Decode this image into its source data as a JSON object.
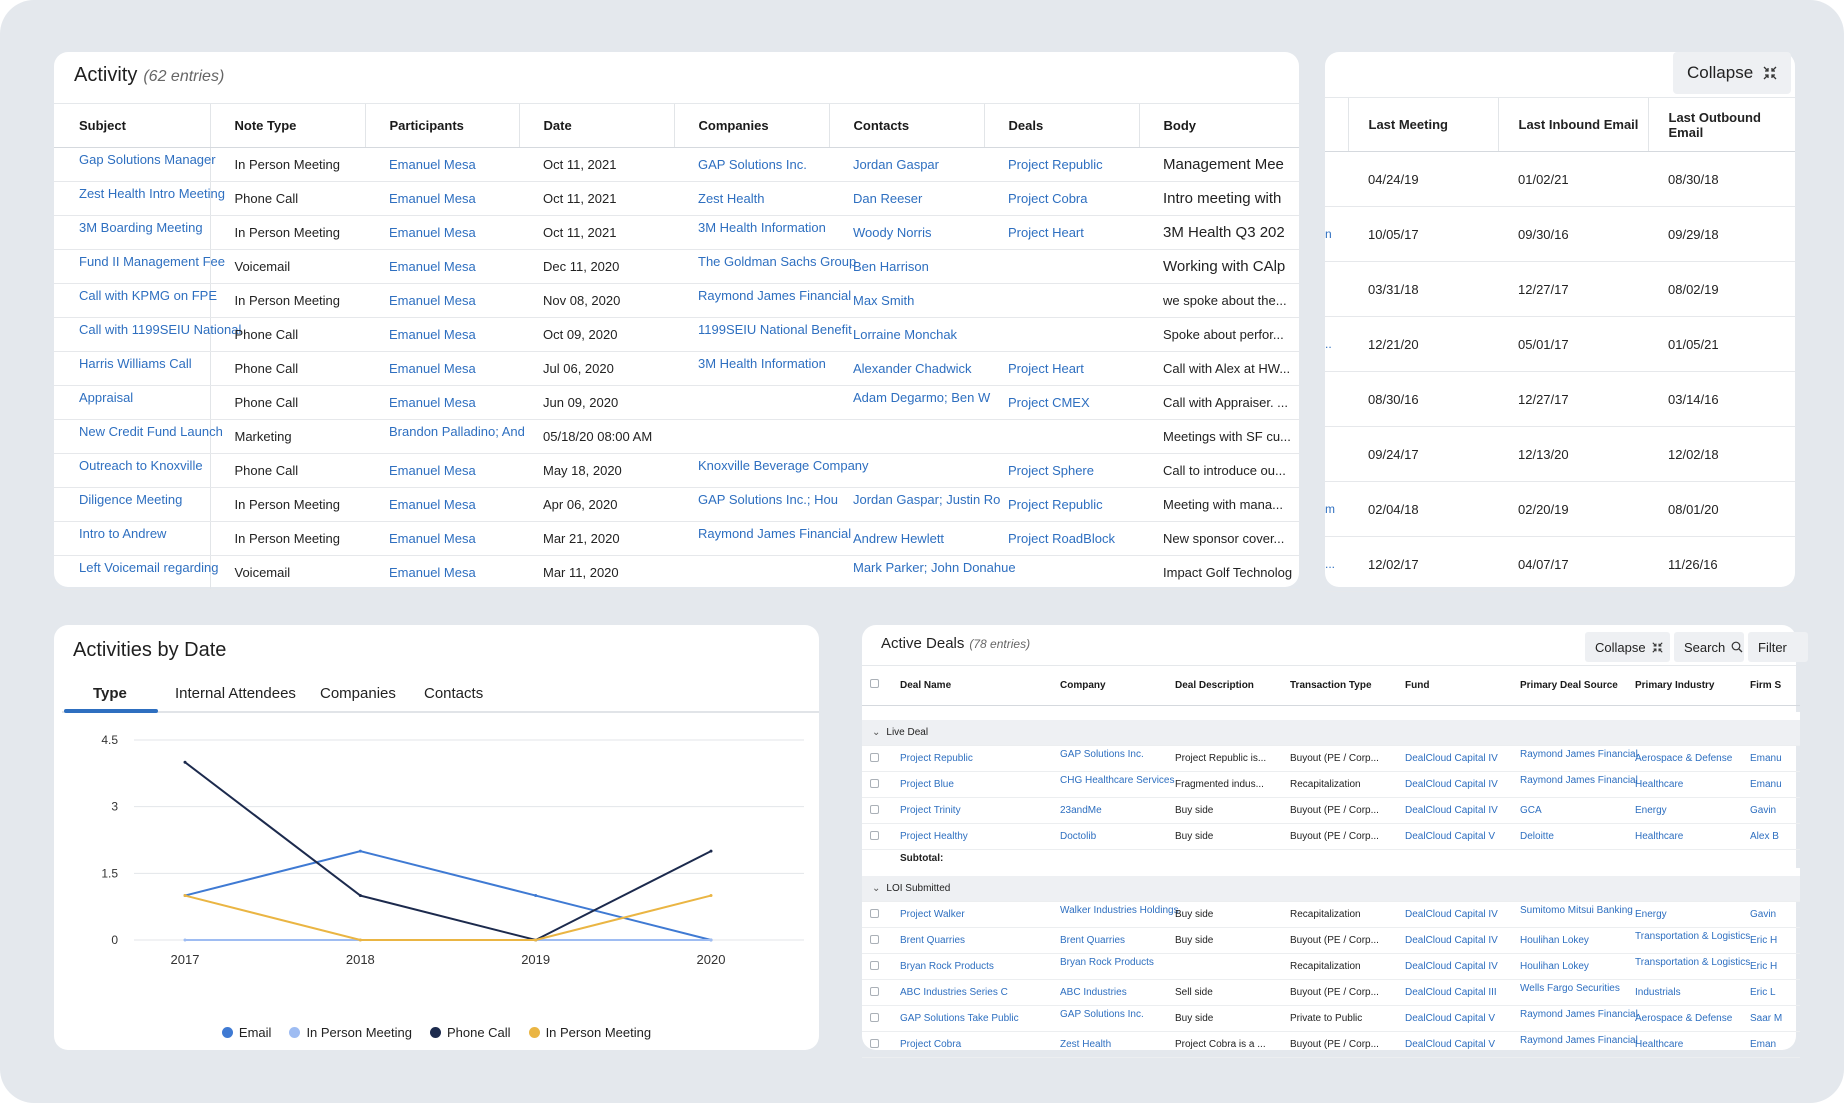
{
  "activity": {
    "title": "Activity",
    "count": "(62 entries)",
    "columns": [
      "Subject",
      "Note Type",
      "Participants",
      "Date",
      "Companies",
      "Contacts",
      "Deals",
      "Body"
    ],
    "rows": [
      [
        "Gap Solutions Manager",
        "In Person Meeting",
        "Emanuel Mesa",
        "Oct 11, 2021",
        "GAP Solutions Inc.",
        "Jordan Gaspar",
        "Project Republic",
        "Management Mee"
      ],
      [
        "Zest Health Intro Meeting",
        "Phone Call",
        "Emanuel Mesa",
        "Oct 11, 2021",
        "Zest Health",
        "Dan Reeser",
        "Project Cobra",
        "Intro meeting with"
      ],
      [
        "3M Boarding Meeting",
        "In Person Meeting",
        "Emanuel Mesa",
        "Oct 11, 2021",
        "3M Health Information",
        "Woody Norris",
        "Project Heart",
        "3M Health Q3 202"
      ],
      [
        "Fund II Management Fee",
        "Voicemail",
        "Emanuel Mesa",
        "Dec 11, 2020",
        "The Goldman Sachs Group",
        "Ben Harrison",
        "",
        "Working with CAlp"
      ],
      [
        "Call with KPMG on FPE",
        "In Person Meeting",
        "Emanuel Mesa",
        "Nov 08, 2020",
        "Raymond James Financial",
        "Max Smith",
        "",
        "we spoke about the..."
      ],
      [
        "Call with 1199SEIU National",
        "Phone Call",
        "Emanuel Mesa",
        "Oct 09, 2020",
        "1199SEIU National Benefit",
        "Lorraine Monchak",
        "",
        "Spoke about perfor..."
      ],
      [
        "Harris Williams Call",
        "Phone Call",
        "Emanuel Mesa",
        "Jul 06, 2020",
        "3M Health Information",
        "Alexander Chadwick",
        "Project Heart",
        "Call with Alex at HW..."
      ],
      [
        "Appraisal",
        "Phone Call",
        "Emanuel Mesa",
        "Jun 09, 2020",
        "",
        "Adam Degarmo; Ben W",
        "Project CMEX",
        "Call with Appraiser. ..."
      ],
      [
        "New Credit Fund Launch",
        "Marketing",
        "Brandon Palladino; And",
        "05/18/20 08:00 AM",
        "",
        "",
        "",
        "Meetings with SF cu..."
      ],
      [
        "Outreach to Knoxville",
        "Phone Call",
        "Emanuel Mesa",
        "May 18, 2020",
        "Knoxville Beverage Company",
        "",
        "Project Sphere",
        "Call to introduce ou..."
      ],
      [
        "Diligence Meeting",
        "In Person Meeting",
        "Emanuel Mesa",
        "Apr 06, 2020",
        "GAP Solutions Inc.; Hou",
        "Jordan Gaspar; Justin Ro",
        "Project Republic",
        "Meeting with mana..."
      ],
      [
        "Intro to Andrew",
        "In Person Meeting",
        "Emanuel Mesa",
        "Mar 21, 2020",
        "Raymond James Financial",
        "Andrew Hewlett",
        "Project RoadBlock",
        "New sponsor cover..."
      ],
      [
        "Left Voicemail regarding",
        "Voicemail",
        "Emanuel Mesa",
        "Mar 11, 2020",
        "",
        "Mark Parker; John Donahue",
        "",
        "Impact Golf Technolog"
      ]
    ]
  },
  "contacts": {
    "collapse_label": "Collapse",
    "columns": [
      "",
      "Last Meeting",
      "Last Inbound Email",
      "Last Outbound Email"
    ],
    "rows": [
      [
        "",
        "04/24/19",
        "01/02/21",
        "08/30/18"
      ],
      [
        "n",
        "10/05/17",
        "09/30/16",
        "09/29/18"
      ],
      [
        "",
        "03/31/18",
        "12/27/17",
        "08/02/19"
      ],
      [
        "..",
        "12/21/20",
        "05/01/17",
        "01/05/21"
      ],
      [
        "",
        "08/30/16",
        "12/27/17",
        "03/14/16"
      ],
      [
        "",
        "09/24/17",
        "12/13/20",
        "12/02/18"
      ],
      [
        "m",
        "02/04/18",
        "02/20/19",
        "08/01/20"
      ],
      [
        "...",
        "12/02/17",
        "04/07/17",
        "11/26/16"
      ]
    ]
  },
  "chart": {
    "title": "Activities by Date",
    "tabs": [
      "Type",
      "Internal Attendees",
      "Companies",
      "Contacts"
    ],
    "active_tab": "Type"
  },
  "chart_data": {
    "type": "line",
    "title": "Activities by Date",
    "x": [
      "2017",
      "2018",
      "2019",
      "2020"
    ],
    "ylim": [
      0,
      4.5
    ],
    "yticks": [
      "4.5",
      "3",
      "1.5",
      "0"
    ],
    "series": [
      {
        "name": "Email",
        "color": "#3f7ad3",
        "values": [
          1,
          2,
          1,
          0
        ]
      },
      {
        "name": "In Person Meeting",
        "color": "#9ebcf2",
        "values": [
          0,
          0,
          0,
          0
        ]
      },
      {
        "name": "Phone Call",
        "color": "#1c2a4d",
        "values": [
          4,
          1,
          0,
          2
        ]
      },
      {
        "name": "In Person Meeting",
        "color": "#eab543",
        "values": [
          1,
          0,
          0,
          1
        ]
      }
    ]
  },
  "deals": {
    "title": "Active Deals",
    "count": "(78 entries)",
    "collapse_label": "Collapse",
    "search_label": "Search",
    "filter_label": "Filter",
    "columns": [
      "Deal Name",
      "Company",
      "Deal Description",
      "Transaction Type",
      "Fund",
      "Primary Deal Source",
      "Primary Industry",
      "Firm S"
    ],
    "groups": [
      {
        "name": "Live Deal",
        "rows": [
          [
            "Project Republic",
            "GAP Solutions Inc.",
            "Project Republic is...",
            "Buyout (PE / Corp...",
            "DealCloud Capital IV",
            "Raymond James Financial",
            "Aerospace & Defense",
            "Emanu"
          ],
          [
            "Project Blue",
            "CHG Healthcare Services",
            "Fragmented indus...",
            "Recapitalization",
            "DealCloud Capital IV",
            "Raymond James Financial",
            "Healthcare",
            "Emanu"
          ],
          [
            "Project Trinity",
            "23andMe",
            "Buy side",
            "Buyout (PE / Corp...",
            "DealCloud Capital IV",
            "GCA",
            "Energy",
            "Gavin"
          ],
          [
            "Project Healthy",
            "Doctolib",
            "Buy side",
            "Buyout (PE / Corp...",
            "DealCloud Capital V",
            "Deloitte",
            "Healthcare",
            "Alex B"
          ]
        ],
        "subtotal": "Subtotal:"
      },
      {
        "name": "LOI Submitted",
        "rows": [
          [
            "Project Walker",
            "Walker Industries Holdings",
            "Buy side",
            "Recapitalization",
            "DealCloud Capital IV",
            "Sumitomo Mitsui Banking",
            "Energy",
            "Gavin"
          ],
          [
            "Brent Quarries",
            "Brent Quarries",
            "Buy side",
            "Buyout (PE / Corp...",
            "DealCloud Capital IV",
            "Houlihan Lokey",
            "Transportation & Logistics",
            "Eric H"
          ],
          [
            "Bryan Rock Products",
            "Bryan Rock Products",
            "",
            "Recapitalization",
            "DealCloud Capital IV",
            "Houlihan Lokey",
            "Transportation & Logistics",
            "Eric H"
          ],
          [
            "ABC Industries Series C",
            "ABC Industries",
            "Sell side",
            "Buyout (PE / Corp...",
            "DealCloud Capital III",
            "Wells Fargo Securities",
            "Industrials",
            "Eric L"
          ],
          [
            "GAP Solutions Take Public",
            "GAP Solutions Inc.",
            "Buy side",
            "Private to Public",
            "DealCloud Capital V",
            "Raymond James Financial",
            "Aerospace & Defense",
            "Saar M"
          ],
          [
            "Project Cobra",
            "Zest Health",
            "Project Cobra is a ...",
            "Buyout (PE / Corp...",
            "DealCloud Capital V",
            "Raymond James Financial",
            "Healthcare",
            "Eman"
          ]
        ]
      }
    ]
  }
}
